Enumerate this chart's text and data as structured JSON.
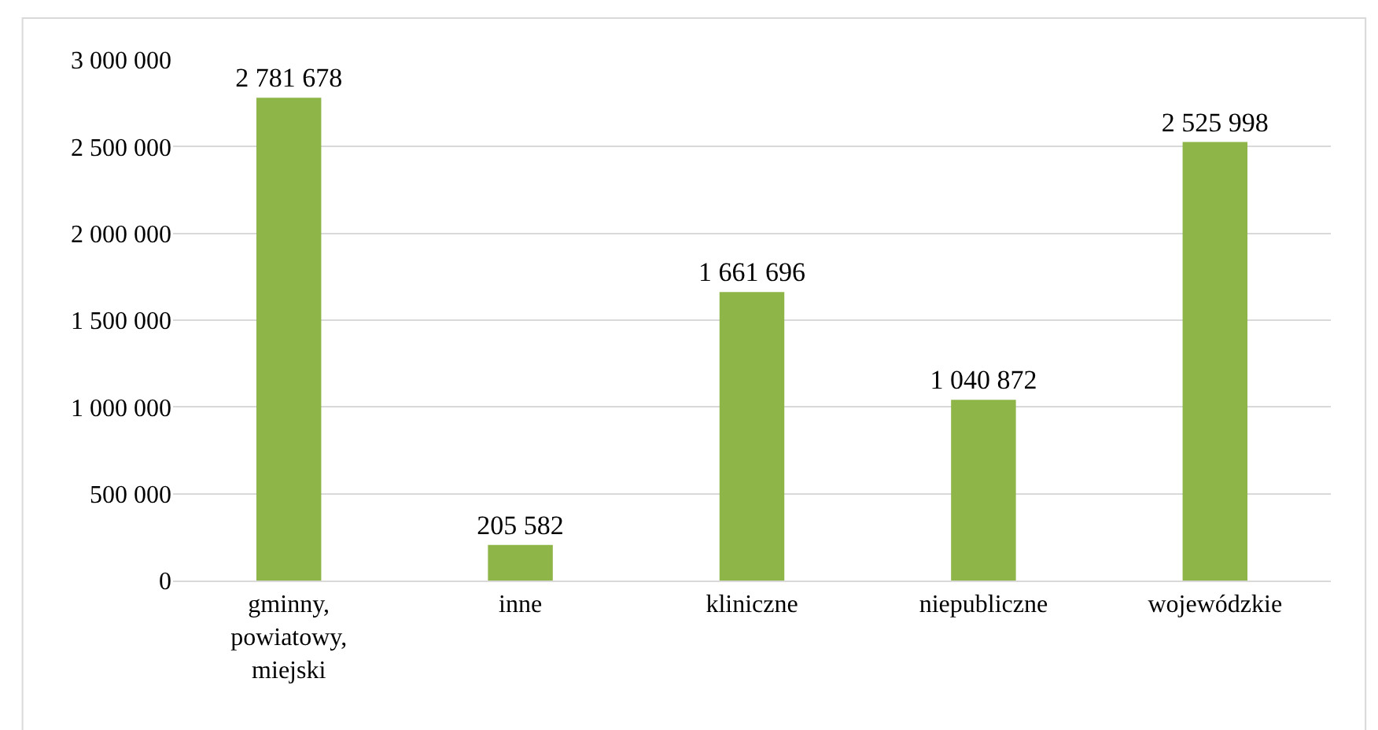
{
  "chart_data": {
    "type": "bar",
    "categories": [
      "gminny, powiatowy, miejski",
      "inne",
      "kliniczne",
      "niepubliczne",
      "wojewódzkie"
    ],
    "values": [
      2781678,
      205582,
      1661696,
      1040872,
      2525998
    ],
    "color": "#8db548",
    "data_labels": true,
    "grid": "y",
    "ylim": [
      0,
      3000000
    ],
    "yticks": [
      0,
      {
        "value": 500000,
        "label": "500 000"
      },
      {
        "value": 1000000,
        "label": "1 000 000"
      },
      {
        "value": 1500000,
        "label": "1 500 000"
      },
      {
        "value": 2000000,
        "label": "2 000 000"
      },
      {
        "value": 2500000,
        "label": "2 500 000"
      },
      {
        "value": 3000000,
        "label": "3 000 000"
      }
    ]
  }
}
